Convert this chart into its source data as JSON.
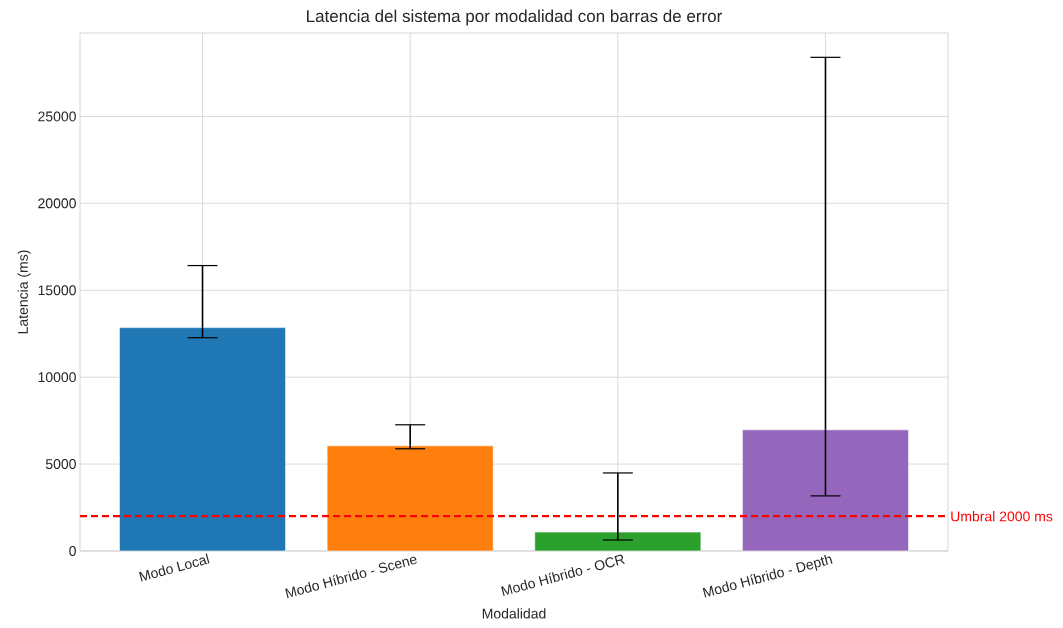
{
  "chart_data": {
    "type": "bar",
    "title": "Latencia del sistema por modalidad con barras de error",
    "xlabel": "Modalidad",
    "ylabel": "Latencia (ms)",
    "categories": [
      "Modo Local",
      "Modo Híbrido - Scene",
      "Modo Híbrido - OCR",
      "Modo Híbrido - Depth"
    ],
    "values": [
      12850,
      6050,
      1090,
      6970
    ],
    "colors": [
      "#1f77b4",
      "#ff7f0e",
      "#2ca02c",
      "#9467bd"
    ],
    "errors": [
      [
        12270,
        16420
      ],
      [
        5880,
        7260
      ],
      [
        630,
        4490
      ],
      [
        3170,
        28400
      ]
    ],
    "ylim": [
      0,
      29800
    ],
    "yticks": [
      0,
      5000,
      10000,
      15000,
      20000,
      25000
    ],
    "ref_lines": [
      {
        "axis": "y",
        "value": 2000,
        "label": "Umbral 2000 ms",
        "color": "#ff0000",
        "line_style": "dashed"
      }
    ],
    "grid": true
  }
}
